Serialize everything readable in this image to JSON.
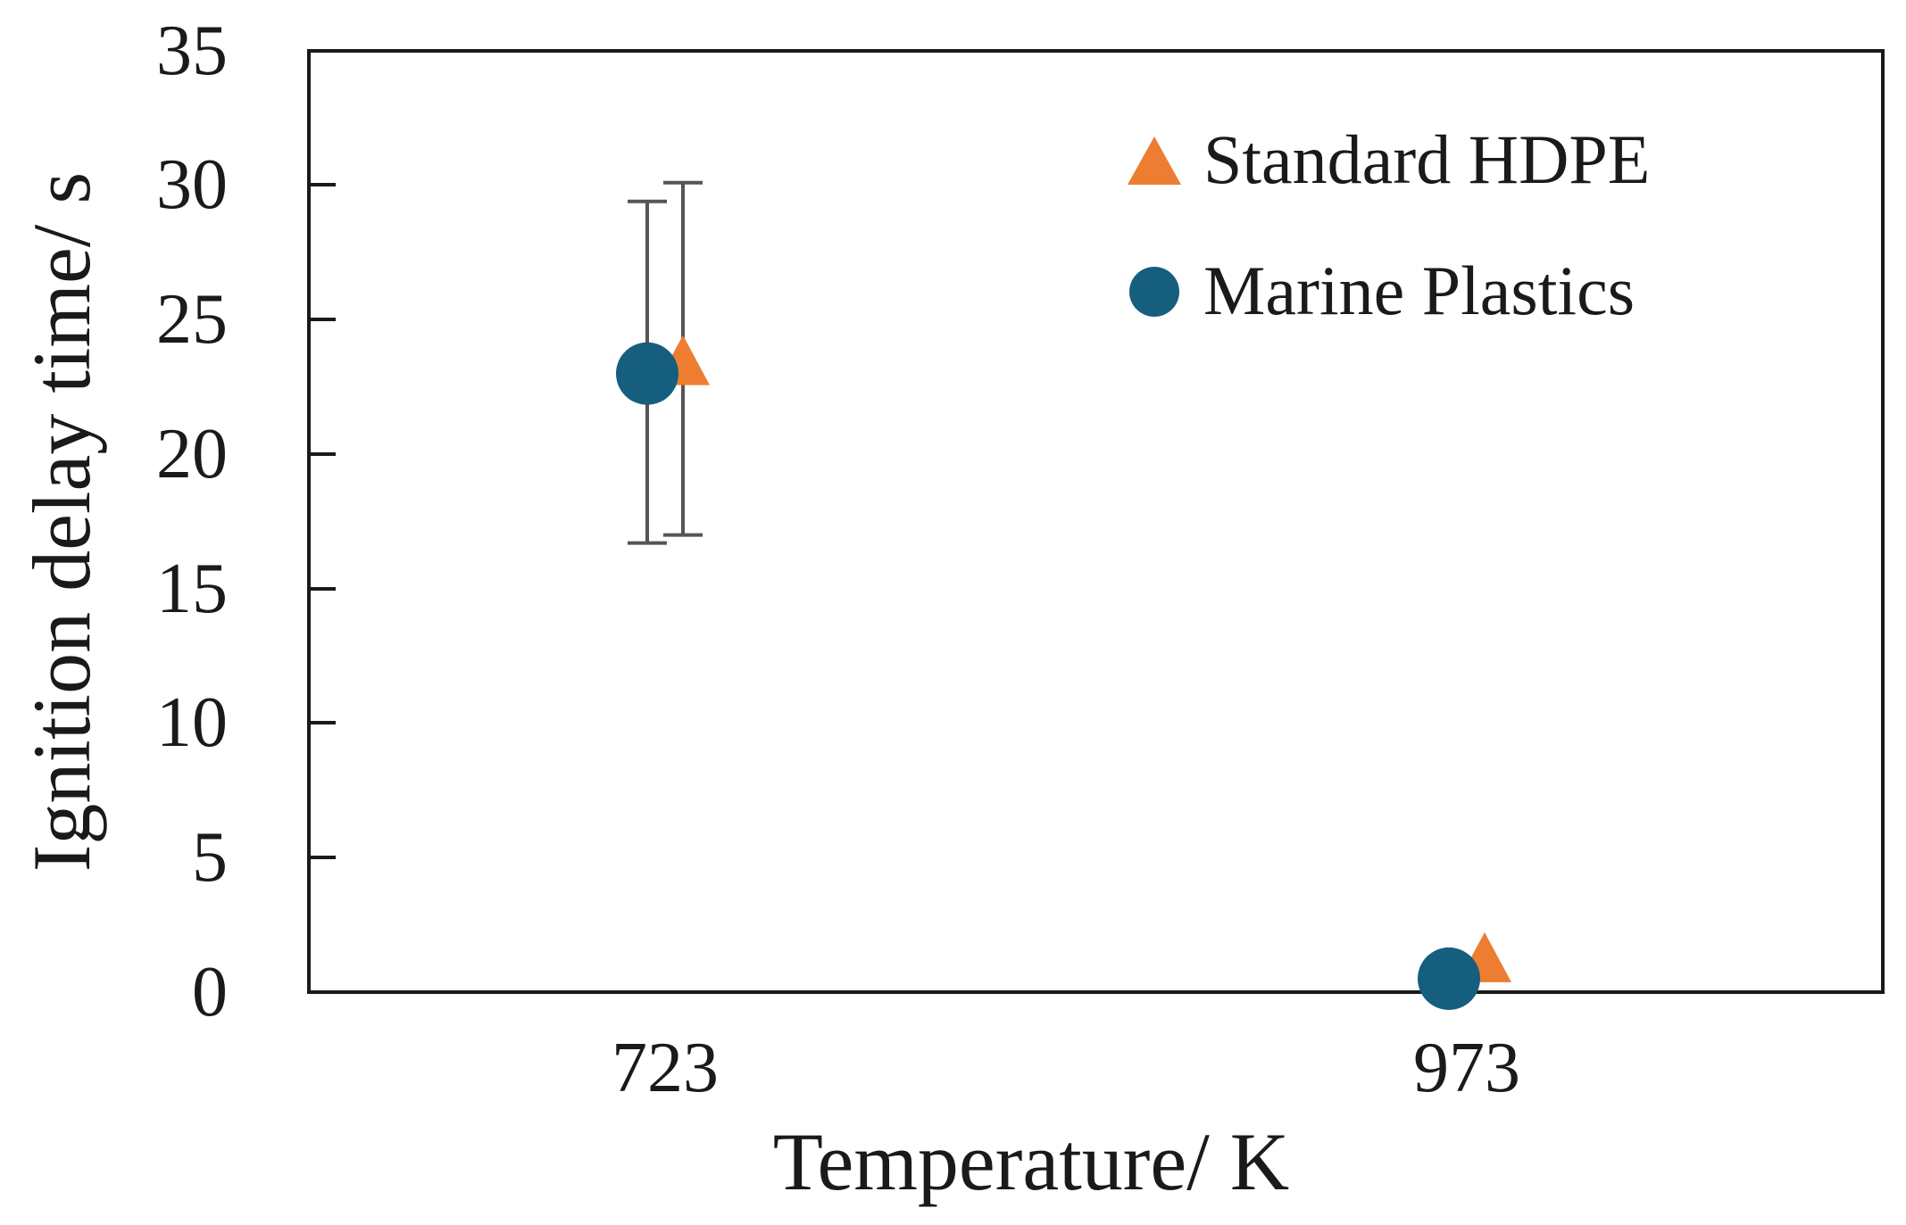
{
  "chart_data": {
    "type": "scatter",
    "xlabel": "Temperature/ K",
    "ylabel": "Ignition delay time/ s",
    "categories": [
      "723",
      "973"
    ],
    "ylim": [
      0,
      35
    ],
    "yticks": [
      "0",
      "5",
      "10",
      "15",
      "20",
      "25",
      "30",
      "35"
    ],
    "grid": false,
    "legend_position": "top-right",
    "series": [
      {
        "name": "Standard HDPE",
        "marker": "triangle",
        "color": "#ED7D31",
        "values": [
          23.5,
          1.3
        ],
        "error": [
          {
            "low": 17.0,
            "high": 30.1
          },
          null
        ]
      },
      {
        "name": "Marine Plastics",
        "marker": "circle",
        "color": "#155E7E",
        "values": [
          23.0,
          0.5
        ],
        "error": [
          {
            "low": 16.7,
            "high": 29.4
          },
          null
        ]
      }
    ],
    "errorbar_color": "#555555"
  }
}
